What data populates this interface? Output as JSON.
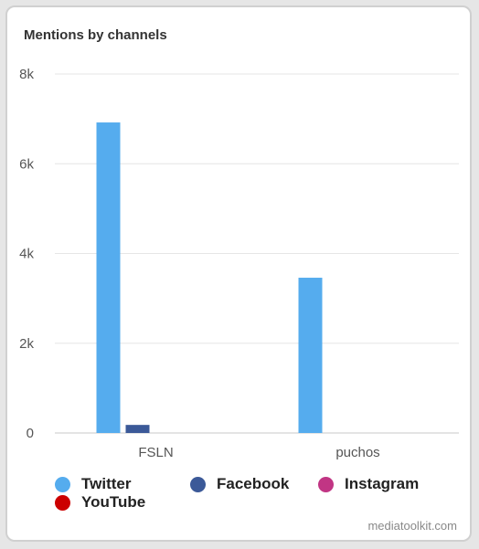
{
  "title": "Mentions by channels",
  "credit": "mediatoolkit.com",
  "chart_data": {
    "type": "bar",
    "title": "Mentions by channels",
    "categories": [
      "FSLN",
      "puchos"
    ],
    "ylim": [
      0,
      8000
    ],
    "yticks": [
      0,
      2000,
      4000,
      6000,
      8000
    ],
    "ytick_labels": [
      "0",
      "2k",
      "4k",
      "6k",
      "8k"
    ],
    "grid": true,
    "legend_position": "bottom",
    "series": [
      {
        "name": "Twitter",
        "color": "#55acee",
        "values": [
          6920,
          3460
        ]
      },
      {
        "name": "Facebook",
        "color": "#3b5998",
        "values": [
          180,
          0
        ]
      },
      {
        "name": "Instagram",
        "color": "#c13584",
        "values": [
          0,
          0
        ]
      },
      {
        "name": "YouTube",
        "color": "#cc0000",
        "values": [
          0,
          0
        ]
      }
    ]
  }
}
